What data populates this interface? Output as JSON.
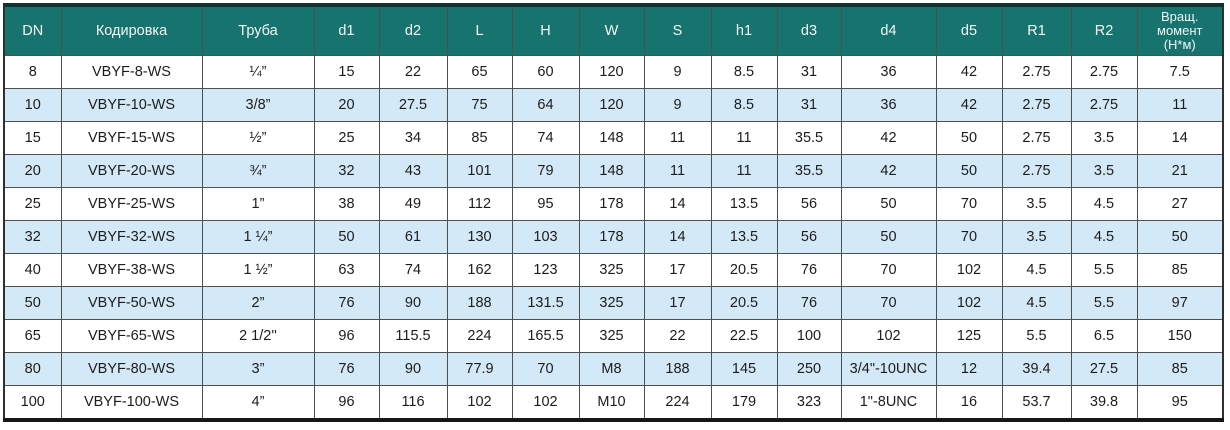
{
  "page": {
    "background": "#ffffff"
  },
  "colors": {
    "header_bg": "#17736d",
    "header_text": "#f2f7f6",
    "row_bg": "#ffffff",
    "row_alt_bg": "#d4e9f7",
    "grid_line": "#4f4f4f",
    "outer_top_bar": "#12332f",
    "outer_bottom_bar": "#161616"
  },
  "table": {
    "name": "valve-dimension-spec-table",
    "columns": [
      {
        "key": "dn",
        "label": "DN"
      },
      {
        "key": "kodirovka",
        "label": "Кодировка"
      },
      {
        "key": "truba",
        "label": "Труба"
      },
      {
        "key": "d1",
        "label": "d1"
      },
      {
        "key": "d2",
        "label": "d2"
      },
      {
        "key": "l",
        "label": "L"
      },
      {
        "key": "h",
        "label": "H"
      },
      {
        "key": "w",
        "label": "W"
      },
      {
        "key": "s",
        "label": "S"
      },
      {
        "key": "h1",
        "label": "h1"
      },
      {
        "key": "d3",
        "label": "d3"
      },
      {
        "key": "d4",
        "label": "d4"
      },
      {
        "key": "d5",
        "label": "d5"
      },
      {
        "key": "r1",
        "label": "R1"
      },
      {
        "key": "r2",
        "label": "R2"
      },
      {
        "key": "moment",
        "label": "Вращ. момент (Н*м)"
      }
    ],
    "rows": [
      [
        "8",
        "VBYF-8-WS",
        "¼”",
        "15",
        "22",
        "65",
        "60",
        "120",
        "9",
        "8.5",
        "31",
        "36",
        "42",
        "2.75",
        "2.75",
        "7.5"
      ],
      [
        "10",
        "VBYF-10-WS",
        "3/8”",
        "20",
        "27.5",
        "75",
        "64",
        "120",
        "9",
        "8.5",
        "31",
        "36",
        "42",
        "2.75",
        "2.75",
        "11"
      ],
      [
        "15",
        "VBYF-15-WS",
        "½”",
        "25",
        "34",
        "85",
        "74",
        "148",
        "11",
        "11",
        "35.5",
        "42",
        "50",
        "2.75",
        "3.5",
        "14"
      ],
      [
        "20",
        "VBYF-20-WS",
        "¾”",
        "32",
        "43",
        "101",
        "79",
        "148",
        "11",
        "11",
        "35.5",
        "42",
        "50",
        "2.75",
        "3.5",
        "21"
      ],
      [
        "25",
        "VBYF-25-WS",
        "1”",
        "38",
        "49",
        "112",
        "95",
        "178",
        "14",
        "13.5",
        "56",
        "50",
        "70",
        "3.5",
        "4.5",
        "27"
      ],
      [
        "32",
        "VBYF-32-WS",
        "1 ¼”",
        "50",
        "61",
        "130",
        "103",
        "178",
        "14",
        "13.5",
        "56",
        "50",
        "70",
        "3.5",
        "4.5",
        "50"
      ],
      [
        "40",
        "VBYF-38-WS",
        "1 ½”",
        "63",
        "74",
        "162",
        "123",
        "325",
        "17",
        "20.5",
        "76",
        "70",
        "102",
        "4.5",
        "5.5",
        "85"
      ],
      [
        "50",
        "VBYF-50-WS",
        "2”",
        "76",
        "90",
        "188",
        "131.5",
        "325",
        "17",
        "20.5",
        "76",
        "70",
        "102",
        "4.5",
        "5.5",
        "97"
      ],
      [
        "65",
        "VBYF-65-WS",
        "2 1/2''",
        "96",
        "115.5",
        "224",
        "165.5",
        "325",
        "22",
        "22.5",
        "100",
        "102",
        "125",
        "5.5",
        "6.5",
        "150"
      ],
      [
        "80",
        "VBYF-80-WS",
        "3”",
        "76",
        "90",
        "77.9",
        "70",
        "M8",
        "188",
        "145",
        "250",
        "3/4\"-10UNC",
        "12",
        "39.4",
        "27.5",
        "85"
      ],
      [
        "100",
        "VBYF-100-WS",
        "4”",
        "96",
        "116",
        "102",
        "102",
        "M10",
        "224",
        "179",
        "323",
        "1\"-8UNC",
        "16",
        "53.7",
        "39.8",
        "95"
      ]
    ]
  }
}
